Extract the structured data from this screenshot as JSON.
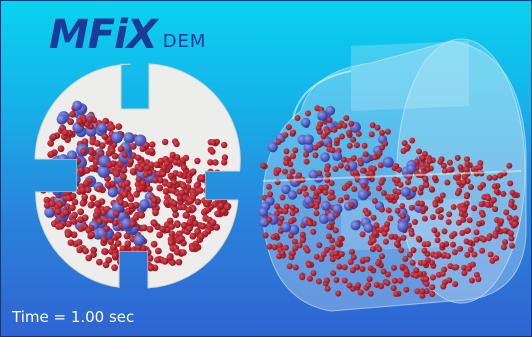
{
  "logo": {
    "mark": "MFiX",
    "sub": "DEM"
  },
  "time_label": "Time =  1.00 sec",
  "colors": {
    "heavy": "#c41f2b",
    "light": "#4f5ed1",
    "drum": "#ececea"
  }
}
